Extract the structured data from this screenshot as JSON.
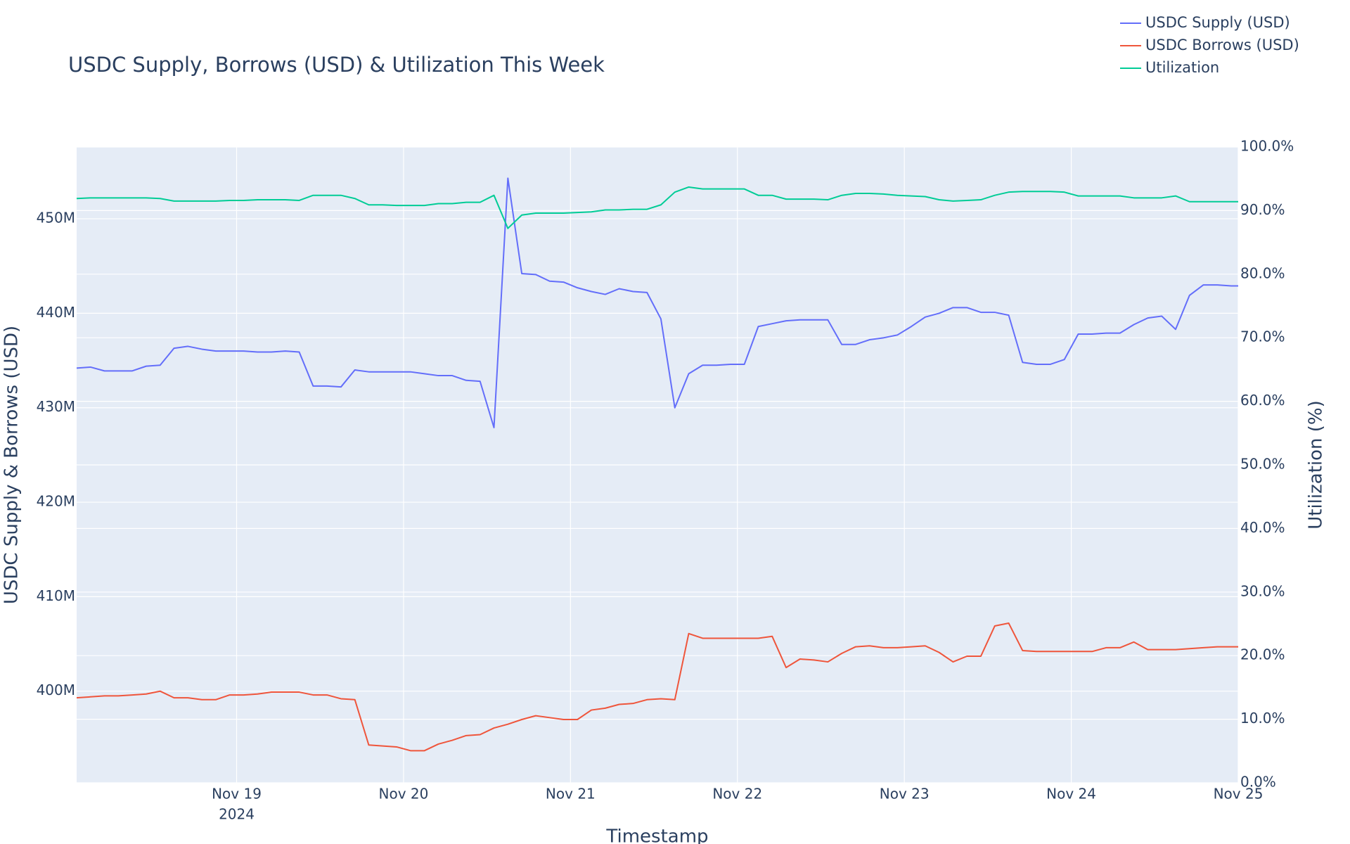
{
  "chart_data": {
    "type": "line",
    "title": "USDC Supply, Borrows (USD) & Utilization This Week",
    "x_label": "Timestamp",
    "y_label": "USDC Supply & Borrows (USD)",
    "y2_label": "Utilization (%)",
    "x_year_label": "2024",
    "grid": true,
    "legend": "top-right",
    "background": "#e5ecf6",
    "x": [
      "2024-11-18T01:00:00",
      "2024-11-18T03:00:00",
      "2024-11-18T05:00:00",
      "2024-11-18T07:00:00",
      "2024-11-18T09:00:00",
      "2024-11-18T11:00:00",
      "2024-11-18T13:00:00",
      "2024-11-18T15:00:00",
      "2024-11-18T17:00:00",
      "2024-11-18T19:00:00",
      "2024-11-18T21:00:00",
      "2024-11-18T23:00:00",
      "2024-11-19T01:00:00",
      "2024-11-19T03:00:00",
      "2024-11-19T05:00:00",
      "2024-11-19T07:00:00",
      "2024-11-19T09:00:00",
      "2024-11-19T11:00:00",
      "2024-11-19T13:00:00",
      "2024-11-19T15:00:00",
      "2024-11-19T17:00:00",
      "2024-11-19T19:00:00",
      "2024-11-19T21:00:00",
      "2024-11-19T23:00:00",
      "2024-11-20T01:00:00",
      "2024-11-20T03:00:00",
      "2024-11-20T05:00:00",
      "2024-11-20T07:00:00",
      "2024-11-20T09:00:00",
      "2024-11-20T11:00:00",
      "2024-11-20T13:00:00",
      "2024-11-20T15:00:00",
      "2024-11-20T17:00:00",
      "2024-11-20T19:00:00",
      "2024-11-20T21:00:00",
      "2024-11-20T23:00:00",
      "2024-11-21T01:00:00",
      "2024-11-21T03:00:00",
      "2024-11-21T05:00:00",
      "2024-11-21T07:00:00",
      "2024-11-21T09:00:00",
      "2024-11-21T11:00:00",
      "2024-11-21T13:00:00",
      "2024-11-21T15:00:00",
      "2024-11-21T17:00:00",
      "2024-11-21T19:00:00",
      "2024-11-21T21:00:00",
      "2024-11-21T23:00:00",
      "2024-11-22T01:00:00",
      "2024-11-22T03:00:00",
      "2024-11-22T05:00:00",
      "2024-11-22T07:00:00",
      "2024-11-22T09:00:00",
      "2024-11-22T11:00:00",
      "2024-11-22T13:00:00",
      "2024-11-22T15:00:00",
      "2024-11-22T17:00:00",
      "2024-11-22T19:00:00",
      "2024-11-22T21:00:00",
      "2024-11-22T23:00:00",
      "2024-11-23T01:00:00",
      "2024-11-23T03:00:00",
      "2024-11-23T05:00:00",
      "2024-11-23T07:00:00",
      "2024-11-23T09:00:00",
      "2024-11-23T11:00:00",
      "2024-11-23T13:00:00",
      "2024-11-23T15:00:00",
      "2024-11-23T17:00:00",
      "2024-11-23T19:00:00",
      "2024-11-23T21:00:00",
      "2024-11-23T23:00:00",
      "2024-11-24T01:00:00",
      "2024-11-24T03:00:00",
      "2024-11-24T05:00:00",
      "2024-11-24T07:00:00",
      "2024-11-24T09:00:00",
      "2024-11-24T11:00:00",
      "2024-11-24T13:00:00",
      "2024-11-24T15:00:00",
      "2024-11-24T17:00:00",
      "2024-11-24T19:00:00",
      "2024-11-24T21:00:00",
      "2024-11-24T23:00:00",
      "2024-11-25T00:00:00"
    ],
    "xlim": [
      "2024-11-18T01:00:00",
      "2024-11-25T00:00:00"
    ],
    "xticks": [
      {
        "value": "2024-11-19T00:00:00",
        "label": "Nov 19"
      },
      {
        "value": "2024-11-20T00:00:00",
        "label": "Nov 20"
      },
      {
        "value": "2024-11-21T00:00:00",
        "label": "Nov 21"
      },
      {
        "value": "2024-11-22T00:00:00",
        "label": "Nov 22"
      },
      {
        "value": "2024-11-23T00:00:00",
        "label": "Nov 23"
      },
      {
        "value": "2024-11-24T00:00:00",
        "label": "Nov 24"
      },
      {
        "value": "2024-11-25T00:00:00",
        "label": "Nov 25"
      }
    ],
    "ylim": [
      390300000.0,
      457600000.0
    ],
    "yticks": [
      {
        "value": 400000000.0,
        "label": "400M"
      },
      {
        "value": 410000000.0,
        "label": "410M"
      },
      {
        "value": 420000000.0,
        "label": "420M"
      },
      {
        "value": 430000000.0,
        "label": "430M"
      },
      {
        "value": 440000000.0,
        "label": "440M"
      },
      {
        "value": 450000000.0,
        "label": "450M"
      }
    ],
    "y2lim": [
      0,
      100
    ],
    "y2ticks": [
      {
        "value": 0,
        "label": "0.0%"
      },
      {
        "value": 10,
        "label": "10.0%"
      },
      {
        "value": 20,
        "label": "20.0%"
      },
      {
        "value": 30,
        "label": "30.0%"
      },
      {
        "value": 40,
        "label": "40.0%"
      },
      {
        "value": 50,
        "label": "50.0%"
      },
      {
        "value": 60,
        "label": "60.0%"
      },
      {
        "value": 70,
        "label": "70.0%"
      },
      {
        "value": 80,
        "label": "80.0%"
      },
      {
        "value": 90,
        "label": "90.0%"
      },
      {
        "value": 100,
        "label": "100.0%"
      }
    ],
    "series": [
      {
        "name": "USDC Supply (USD)",
        "color": "#636efa",
        "values": [
          434200000.0,
          434300000.0,
          433900000.0,
          433900000.0,
          433900000.0,
          434400000.0,
          434500000.0,
          436300000.0,
          436500000.0,
          436200000.0,
          436000000.0,
          436000000.0,
          436000000.0,
          435900000.0,
          435900000.0,
          436000000.0,
          435900000.0,
          432300000.0,
          432300000.0,
          432200000.0,
          434000000.0,
          433800000.0,
          433800000.0,
          433800000.0,
          433800000.0,
          433600000.0,
          433400000.0,
          433400000.0,
          432900000.0,
          432800000.0,
          427900000.0,
          454300000.0,
          444200000.0,
          444100000.0,
          443400000.0,
          443300000.0,
          442700000.0,
          442300000.0,
          442000000.0,
          442600000.0,
          442300000.0,
          442200000.0,
          439400000.0,
          430000000.0,
          433600000.0,
          434500000.0,
          434500000.0,
          434600000.0,
          434600000.0,
          438600000.0,
          438900000.0,
          439200000.0,
          439300000.0,
          439300000.0,
          439300000.0,
          436700000.0,
          436700000.0,
          437200000.0,
          437400000.0,
          437700000.0,
          438600000.0,
          439600000.0,
          440000000.0,
          440600000.0,
          440600000.0,
          440100000.0,
          440100000.0,
          439800000.0,
          434800000.0,
          434600000.0,
          434600000.0,
          435100000.0,
          437800000.0,
          437800000.0,
          437900000.0,
          437900000.0,
          438800000.0,
          439500000.0,
          439700000.0,
          438300000.0,
          441900000.0,
          443000000.0,
          443000000.0,
          442900000.0,
          442900000.0
        ]
      },
      {
        "name": "USDC Borrows (USD)",
        "color": "#ef553b",
        "values": [
          399300000.0,
          399400000.0,
          399500000.0,
          399500000.0,
          399600000.0,
          399700000.0,
          400000000.0,
          399300000.0,
          399300000.0,
          399100000.0,
          399100000.0,
          399600000.0,
          399600000.0,
          399700000.0,
          399900000.0,
          399900000.0,
          399900000.0,
          399600000.0,
          399600000.0,
          399200000.0,
          399100000.0,
          394300000.0,
          394200000.0,
          394100000.0,
          393700000.0,
          393700000.0,
          394400000.0,
          394800000.0,
          395300000.0,
          395400000.0,
          396100000.0,
          396500000.0,
          397000000.0,
          397400000.0,
          397200000.0,
          397000000.0,
          397000000.0,
          398000000.0,
          398200000.0,
          398600000.0,
          398700000.0,
          399100000.0,
          399200000.0,
          399100000.0,
          406100000.0,
          405600000.0,
          405600000.0,
          405600000.0,
          405600000.0,
          405600000.0,
          405800000.0,
          402500000.0,
          403400000.0,
          403300000.0,
          403100000.0,
          404000000.0,
          404700000.0,
          404800000.0,
          404600000.0,
          404600000.0,
          404700000.0,
          404800000.0,
          404100000.0,
          403100000.0,
          403700000.0,
          403700000.0,
          406900000.0,
          407200000.0,
          404300000.0,
          404200000.0,
          404200000.0,
          404200000.0,
          404200000.0,
          404200000.0,
          404600000.0,
          404600000.0,
          405200000.0,
          404400000.0,
          404400000.0,
          404400000.0,
          404500000.0,
          404600000.0,
          404700000.0,
          404700000.0,
          404700000.0
        ]
      },
      {
        "name": "Utilization",
        "color": "#00cc96",
        "axis": "y2",
        "values": [
          91.9,
          92.0,
          92.0,
          92.0,
          92.0,
          92.0,
          91.9,
          91.5,
          91.5,
          91.5,
          91.5,
          91.6,
          91.6,
          91.7,
          91.7,
          91.7,
          91.6,
          92.4,
          92.4,
          92.4,
          91.9,
          90.9,
          90.9,
          90.8,
          90.8,
          90.8,
          91.1,
          91.1,
          91.3,
          91.3,
          92.4,
          87.2,
          89.3,
          89.6,
          89.6,
          89.6,
          89.7,
          89.8,
          90.1,
          90.1,
          90.2,
          90.2,
          90.9,
          92.9,
          93.7,
          93.4,
          93.4,
          93.4,
          93.4,
          92.4,
          92.4,
          91.8,
          91.8,
          91.8,
          91.7,
          92.4,
          92.7,
          92.7,
          92.6,
          92.4,
          92.3,
          92.2,
          91.7,
          91.5,
          91.6,
          91.7,
          92.4,
          92.9,
          93.0,
          93.0,
          93.0,
          92.9,
          92.3,
          92.3,
          92.3,
          92.3,
          92.0,
          92.0,
          92.0,
          92.3,
          91.4,
          91.4,
          91.4,
          91.4,
          91.4
        ]
      }
    ]
  }
}
